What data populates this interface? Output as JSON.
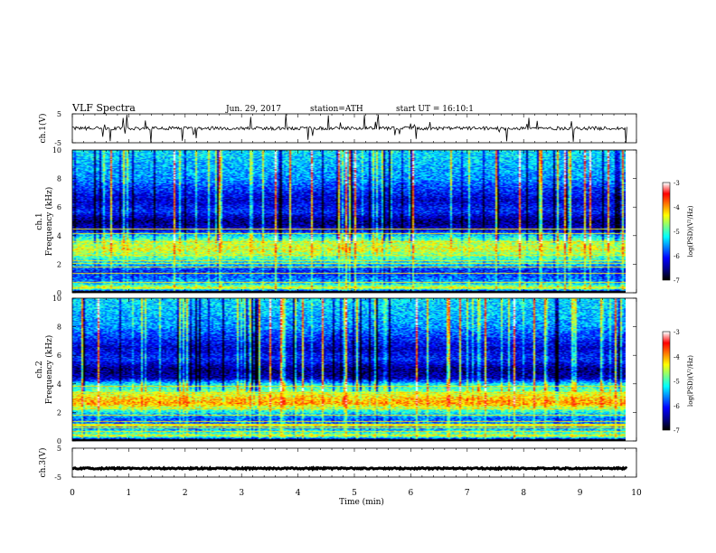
{
  "header": {
    "title": "VLF Spectra",
    "date": "Jun. 29, 2017",
    "station": "station=ATH",
    "start": "start UT = 16:10:1"
  },
  "colors": {
    "colormap": [
      "#000000",
      "#00008c",
      "#0000ff",
      "#0080ff",
      "#00ffff",
      "#80ff80",
      "#ffff00",
      "#ff8000",
      "#ff0000",
      "#ffffff"
    ],
    "trace": "#000000"
  },
  "chart_data": [
    {
      "type": "line",
      "name": "ch1-waveform",
      "ylabel": "ch.1(V)",
      "ylim": [
        -5,
        5
      ],
      "yticks": [
        "5",
        "-5"
      ],
      "xlim": [
        0,
        10
      ],
      "baseline_v": 0,
      "noise_v": 0.6
    },
    {
      "type": "heatmap",
      "name": "ch1-spectrogram",
      "ylabel": "ch.1 Frequency (kHz)",
      "ylim": [
        0,
        10
      ],
      "yticks": [
        "0",
        "2",
        "4",
        "6",
        "8",
        "10"
      ],
      "xlim": [
        0,
        9.83
      ],
      "colorbar": {
        "label": "log(PSD)(V²/Hz)",
        "ticks": [
          "-3",
          "-4",
          "-5",
          "-6",
          "-7"
        ],
        "range": [
          -7,
          -3
        ]
      },
      "profile_khz": [
        0,
        0.3,
        0.6,
        0.8,
        1.5,
        2.0,
        2.5,
        3.0,
        3.5,
        4.0,
        4.4,
        5.0,
        5.7,
        6.5,
        8.0,
        10.0
      ],
      "profile_level": [
        -7.0,
        -4.3,
        -5.3,
        -5.6,
        -6.0,
        -5.4,
        -4.9,
        -4.4,
        -4.6,
        -5.3,
        -6.3,
        -6.6,
        -6.0,
        -6.3,
        -5.6,
        -5.3
      ]
    },
    {
      "type": "heatmap",
      "name": "ch2-spectrogram",
      "ylabel": "ch.2 Frequency (kHz)",
      "ylim": [
        0,
        10
      ],
      "yticks": [
        "0",
        "2",
        "4",
        "6",
        "8",
        "10"
      ],
      "xlim": [
        0,
        9.83
      ],
      "colorbar": {
        "label": "log(PSD)(V²/Hz)",
        "ticks": [
          "-3",
          "-4",
          "-5",
          "-6",
          "-7"
        ],
        "range": [
          -7,
          -3
        ]
      },
      "profile_khz": [
        0,
        0.3,
        0.8,
        1.5,
        2.0,
        2.6,
        3.0,
        3.5,
        4.0,
        4.4,
        5.0,
        5.7,
        6.5,
        8.0,
        10.0
      ],
      "profile_level": [
        -7.0,
        -4.6,
        -5.5,
        -5.8,
        -5.2,
        -4.0,
        -4.2,
        -4.8,
        -5.3,
        -6.4,
        -6.6,
        -6.0,
        -6.3,
        -5.6,
        -5.3
      ]
    },
    {
      "type": "line",
      "name": "ch3-waveform",
      "ylabel": "ch.3(V)",
      "ylim": [
        -5,
        5
      ],
      "yticks": [
        "5",
        "-5"
      ],
      "xlim": [
        0,
        10
      ],
      "baseline_v": -2,
      "noise_v": 0.25
    }
  ],
  "xaxis": {
    "label": "Time (min)",
    "ticks": [
      "0",
      "1",
      "2",
      "3",
      "4",
      "5",
      "6",
      "7",
      "8",
      "9",
      "10"
    ],
    "range": [
      0,
      10
    ]
  }
}
